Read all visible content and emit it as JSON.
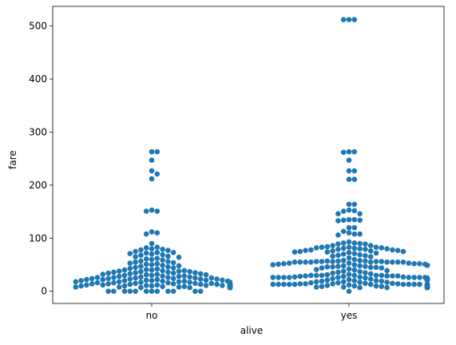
{
  "chart_data": {
    "type": "scatter",
    "subtype": "swarm",
    "xlabel": "alive",
    "ylabel": "fare",
    "categories": [
      "no",
      "yes"
    ],
    "ylim": [
      -23,
      537
    ],
    "yticks": [
      0,
      100,
      200,
      300,
      400,
      500
    ],
    "grid": false,
    "color": "#1f77b4",
    "points": [
      {
        "category": "no",
        "values": [
          263,
          263,
          247,
          227,
          221,
          212,
          153,
          151,
          151,
          112,
          110,
          108,
          90,
          83,
          82,
          80,
          79,
          78,
          77,
          75,
          73,
          73,
          72,
          71,
          70,
          69,
          68,
          66,
          65,
          64,
          62,
          61,
          60,
          59,
          57,
          56,
          55,
          54,
          53,
          52,
          51,
          50,
          49,
          48,
          47,
          46,
          45,
          44,
          43,
          42,
          41,
          40,
          40,
          39,
          39,
          38,
          38,
          37,
          37,
          36,
          36,
          35,
          35,
          34,
          34,
          33,
          33,
          32,
          32,
          31,
          31,
          30,
          30,
          29,
          29,
          28,
          28,
          27,
          27,
          26,
          26,
          26,
          25,
          25,
          25,
          24,
          24,
          24,
          23,
          23,
          23,
          22,
          22,
          22,
          21,
          21,
          21,
          20,
          20,
          20,
          19,
          19,
          19,
          18,
          18,
          18,
          17,
          17,
          17,
          16,
          16,
          16,
          15,
          15,
          15,
          14,
          14,
          14,
          13,
          13,
          13,
          13,
          12,
          12,
          12,
          12,
          11,
          11,
          11,
          11,
          10,
          10,
          10,
          10,
          9,
          9,
          9,
          9,
          9,
          8,
          8,
          8,
          8,
          8,
          8,
          8,
          8,
          8,
          8,
          8,
          8,
          8,
          8,
          8,
          8,
          8,
          8,
          8,
          8,
          8,
          7,
          7,
          7,
          7,
          7,
          7,
          7,
          7,
          7,
          7,
          7,
          7,
          7,
          7,
          7,
          7,
          7,
          7,
          7,
          7,
          7,
          7,
          7,
          7,
          7,
          7,
          7,
          7,
          7,
          7,
          7,
          7,
          7,
          7,
          7,
          7,
          7,
          7,
          7,
          7,
          0,
          0,
          0,
          0,
          0,
          0,
          0,
          0,
          0,
          0,
          0,
          0
        ]
      },
      {
        "category": "yes",
        "values": [
          512,
          512,
          512,
          263,
          263,
          262,
          247,
          227,
          227,
          211,
          211,
          164,
          164,
          153,
          152,
          151,
          146,
          146,
          135,
          135,
          134,
          134,
          133,
          120,
          120,
          113,
          110,
          108,
          108,
          106,
          93,
          91,
          91,
          90,
          89,
          89,
          86,
          86,
          84,
          83,
          83,
          83,
          82,
          82,
          81,
          81,
          80,
          80,
          79,
          79,
          78,
          78,
          77,
          77,
          76,
          76,
          75,
          75,
          74,
          74,
          73,
          72,
          71,
          70,
          69,
          68,
          67,
          66,
          65,
          63,
          60,
          58,
          58,
          57,
          57,
          57,
          56,
          56,
          56,
          56,
          56,
          55,
          55,
          55,
          55,
          55,
          55,
          55,
          55,
          55,
          53,
          53,
          53,
          52,
          52,
          52,
          51,
          51,
          50,
          50,
          49,
          49,
          49,
          48,
          48,
          47,
          47,
          46,
          46,
          45,
          45,
          44,
          44,
          42,
          41,
          40,
          39,
          38,
          37,
          36,
          35,
          34,
          33,
          32,
          31,
          30,
          30,
          30,
          30,
          30,
          30,
          29,
          29,
          29,
          29,
          28,
          28,
          27,
          27,
          27,
          26,
          26,
          26,
          26,
          26,
          26,
          26,
          26,
          26,
          25,
          25,
          24,
          24,
          24,
          23,
          23,
          23,
          22,
          22,
          21,
          21,
          21,
          20,
          20,
          19,
          19,
          18,
          18,
          17,
          17,
          16,
          16,
          15,
          15,
          14,
          14,
          14,
          14,
          13,
          13,
          13,
          13,
          13,
          13,
          13,
          13,
          13,
          13,
          13,
          13,
          12,
          12,
          12,
          12,
          11,
          11,
          11,
          11,
          10,
          10,
          10,
          10,
          10,
          10,
          9,
          9,
          9,
          9,
          9,
          9,
          9,
          9,
          9,
          9,
          8,
          8,
          8,
          8,
          8,
          8,
          8,
          8,
          8,
          8,
          8,
          8,
          8,
          8,
          8,
          8,
          8,
          8,
          8,
          8,
          8,
          8,
          8,
          8,
          8,
          8,
          8,
          8,
          8,
          8,
          8,
          8,
          7,
          7,
          7,
          7,
          7,
          7,
          7,
          7,
          7,
          7,
          7,
          7,
          7,
          7,
          7,
          7,
          7,
          7,
          7,
          7,
          7,
          7,
          7,
          7,
          7,
          7,
          7,
          7,
          7,
          7,
          7,
          7,
          7,
          0
        ]
      }
    ]
  }
}
